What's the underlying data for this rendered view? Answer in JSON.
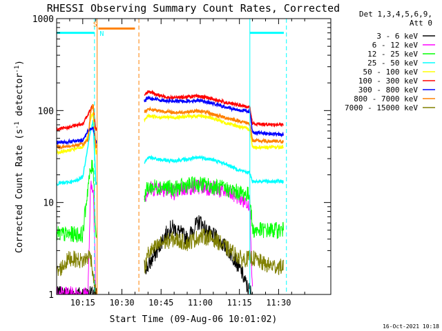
{
  "chart_data": {
    "type": "line",
    "title": "RHESSI Observing Summary Count Rates, Corrected",
    "ylabel_prefix": "Corrected Count Rate (s",
    "ylabel_sup1": "-1",
    "ylabel_mid": " detector",
    "ylabel_sup2": "-1",
    "ylabel_suffix": ")",
    "xlabel": "Start Time (09-Aug-06 10:01:02)",
    "footer": "16-Oct-2021 10:18",
    "legend_header": [
      "Det 1,3,4,5,6,9,",
      "Att 0"
    ],
    "x_range_min": [
      5,
      110
    ],
    "y_scale": "log",
    "ylim": [
      1,
      1000
    ],
    "x_ticks": [
      {
        "t": 15,
        "label": "10:15"
      },
      {
        "t": 30,
        "label": "10:30"
      },
      {
        "t": 45,
        "label": "10:45"
      },
      {
        "t": 60,
        "label": "11:00"
      },
      {
        "t": 75,
        "label": "11:15"
      },
      {
        "t": 90,
        "label": "11:30"
      }
    ],
    "y_ticks": [
      {
        "v": 1,
        "label": "1"
      },
      {
        "v": 10,
        "label": "10"
      },
      {
        "v": 100,
        "label": "100"
      },
      {
        "v": 1000,
        "label": "1000"
      }
    ],
    "series": [
      {
        "name": "3 - 6 keV",
        "color": "#000000",
        "points": [
          [
            5,
            1
          ],
          [
            20,
            1
          ],
          [
            21,
            1
          ],
          [
            39,
            2
          ],
          [
            40,
            2
          ],
          [
            44,
            3.2
          ],
          [
            46,
            4.2
          ],
          [
            49,
            5.4
          ],
          [
            52,
            4.8
          ],
          [
            55,
            4
          ],
          [
            58,
            5.5
          ],
          [
            60,
            6.3
          ],
          [
            63,
            4.6
          ],
          [
            66,
            4.2
          ],
          [
            70,
            3.2
          ],
          [
            73,
            2.5
          ],
          [
            76,
            1.7
          ],
          [
            78,
            1.2
          ],
          [
            80,
            1
          ]
        ]
      },
      {
        "name": "6 - 12 keV",
        "color": "#ff00ff",
        "points": [
          [
            5,
            1
          ],
          [
            17,
            1
          ],
          [
            18,
            14
          ],
          [
            19,
            16
          ],
          [
            20,
            1
          ],
          [
            39,
            12
          ],
          [
            40,
            14
          ],
          [
            45,
            14.5
          ],
          [
            50,
            13
          ],
          [
            55,
            14.5
          ],
          [
            60,
            15
          ],
          [
            65,
            14.2
          ],
          [
            70,
            13
          ],
          [
            75,
            11.5
          ],
          [
            76,
            10.5
          ],
          [
            79,
            10
          ],
          [
            80,
            1
          ]
        ]
      },
      {
        "name": "12 - 25 keV",
        "color": "#00ff00",
        "points": [
          [
            5,
            4.5
          ],
          [
            15,
            4.5
          ],
          [
            17,
            15
          ],
          [
            18,
            22
          ],
          [
            19,
            26
          ],
          [
            20,
            4.5
          ],
          [
            39,
            12.5
          ],
          [
            40,
            14.5
          ],
          [
            45,
            15
          ],
          [
            50,
            14
          ],
          [
            55,
            15.5
          ],
          [
            60,
            15.8
          ],
          [
            65,
            15
          ],
          [
            70,
            14
          ],
          [
            75,
            12.8
          ],
          [
            79,
            12
          ],
          [
            80,
            5
          ],
          [
            90,
            5
          ],
          [
            92,
            5
          ]
        ]
      },
      {
        "name": "25 - 50 keV",
        "color": "#00ffff",
        "points": [
          [
            5,
            16
          ],
          [
            12,
            17
          ],
          [
            15,
            19
          ],
          [
            16,
            28
          ],
          [
            17,
            42
          ],
          [
            18,
            60
          ],
          [
            19,
            78
          ],
          [
            20,
            16
          ],
          [
            39,
            28
          ],
          [
            40,
            31
          ],
          [
            45,
            29
          ],
          [
            50,
            28.5
          ],
          [
            55,
            29.5
          ],
          [
            60,
            31
          ],
          [
            65,
            29
          ],
          [
            70,
            26
          ],
          [
            75,
            22.5
          ],
          [
            79,
            21
          ],
          [
            80,
            17
          ],
          [
            90,
            17
          ],
          [
            92,
            17
          ]
        ]
      },
      {
        "name": "50 - 100 keV",
        "color": "#ffff00",
        "points": [
          [
            5,
            35
          ],
          [
            10,
            37
          ],
          [
            15,
            40
          ],
          [
            17,
            52
          ],
          [
            18,
            80
          ],
          [
            19,
            95
          ],
          [
            20,
            35
          ],
          [
            39,
            80
          ],
          [
            40,
            88
          ],
          [
            45,
            85
          ],
          [
            50,
            84
          ],
          [
            55,
            86
          ],
          [
            60,
            88
          ],
          [
            65,
            82
          ],
          [
            70,
            73
          ],
          [
            75,
            67
          ],
          [
            79,
            62
          ],
          [
            80,
            40
          ],
          [
            90,
            40
          ],
          [
            92,
            40
          ]
        ]
      },
      {
        "name": "100 - 300 keV",
        "color": "#ff0000",
        "points": [
          [
            5,
            62
          ],
          [
            10,
            66
          ],
          [
            15,
            72
          ],
          [
            17,
            90
          ],
          [
            18,
            103
          ],
          [
            19,
            112
          ],
          [
            20,
            62
          ],
          [
            39,
            152
          ],
          [
            40,
            162
          ],
          [
            45,
            144
          ],
          [
            50,
            138
          ],
          [
            55,
            141
          ],
          [
            60,
            143
          ],
          [
            65,
            133
          ],
          [
            70,
            122
          ],
          [
            75,
            114
          ],
          [
            79,
            108
          ],
          [
            80,
            72
          ],
          [
            90,
            70
          ],
          [
            92,
            70
          ]
        ]
      },
      {
        "name": "300 - 800 keV",
        "color": "#0000ff",
        "points": [
          [
            5,
            45
          ],
          [
            10,
            46
          ],
          [
            15,
            47
          ],
          [
            17,
            60
          ],
          [
            18,
            63
          ],
          [
            19,
            65
          ],
          [
            20,
            45
          ],
          [
            39,
            130
          ],
          [
            40,
            138
          ],
          [
            45,
            130
          ],
          [
            50,
            126
          ],
          [
            55,
            127
          ],
          [
            60,
            130
          ],
          [
            65,
            119
          ],
          [
            70,
            108
          ],
          [
            75,
            101
          ],
          [
            79,
            98
          ],
          [
            80,
            58
          ],
          [
            90,
            55
          ],
          [
            92,
            55
          ]
        ]
      },
      {
        "name": "800 - 7000 keV",
        "color": "#ff8000",
        "points": [
          [
            5,
            40
          ],
          [
            10,
            41
          ],
          [
            15,
            43
          ],
          [
            17,
            48
          ],
          [
            18,
            96
          ],
          [
            19,
            118
          ],
          [
            20,
            40
          ],
          [
            39,
            99
          ],
          [
            40,
            104
          ],
          [
            45,
            99
          ],
          [
            50,
            95
          ],
          [
            55,
            97
          ],
          [
            60,
            99
          ],
          [
            65,
            91
          ],
          [
            70,
            83
          ],
          [
            75,
            77
          ],
          [
            79,
            72
          ],
          [
            80,
            47
          ],
          [
            90,
            46
          ],
          [
            92,
            46
          ]
        ]
      },
      {
        "name": "7000 - 15000 keV",
        "color": "#808000",
        "points": [
          [
            5,
            1.7
          ],
          [
            10,
            2.5
          ],
          [
            15,
            2.3
          ],
          [
            18,
            2.7
          ],
          [
            20,
            1
          ],
          [
            39,
            2
          ],
          [
            40,
            2.8
          ],
          [
            45,
            3.6
          ],
          [
            50,
            4
          ],
          [
            55,
            3.6
          ],
          [
            60,
            4.3
          ],
          [
            63,
            4.2
          ],
          [
            66,
            3.9
          ],
          [
            70,
            3.2
          ],
          [
            73,
            2.8
          ],
          [
            76,
            2.4
          ],
          [
            80,
            2.5
          ],
          [
            85,
            2.1
          ],
          [
            90,
            2
          ],
          [
            92,
            2
          ]
        ]
      }
    ],
    "noisy_series": [
      "3 - 6 keV",
      "6 - 12 keV",
      "12 - 25 keV",
      "7000 - 15000 keV"
    ],
    "gaps": [
      [
        20.5,
        38.5
      ]
    ],
    "flags": [
      {
        "color": "#00ffff",
        "segments": [
          [
            5,
            19.5
          ],
          [
            79,
            92
          ]
        ],
        "level": 700
      },
      {
        "color": "#ff8000",
        "segments": [
          [
            21,
            35
          ]
        ],
        "level": 780
      }
    ],
    "vlines": [
      {
        "t": 19.5,
        "color": "#00ffff",
        "style": "dashed"
      },
      {
        "t": 20.5,
        "color": "#ff8000",
        "style": "solid"
      },
      {
        "t": 36.5,
        "color": "#ff8000",
        "style": "dashed"
      },
      {
        "t": 79,
        "color": "#00ffff",
        "style": "solid"
      },
      {
        "t": 93,
        "color": "#00ffff",
        "style": "dashed"
      }
    ],
    "markers": [
      {
        "label": "S",
        "color": "#ff8000",
        "t": 19,
        "v": 820
      },
      {
        "label": "N",
        "color": "#00ffff",
        "t": 21.5,
        "v": 650
      }
    ]
  }
}
